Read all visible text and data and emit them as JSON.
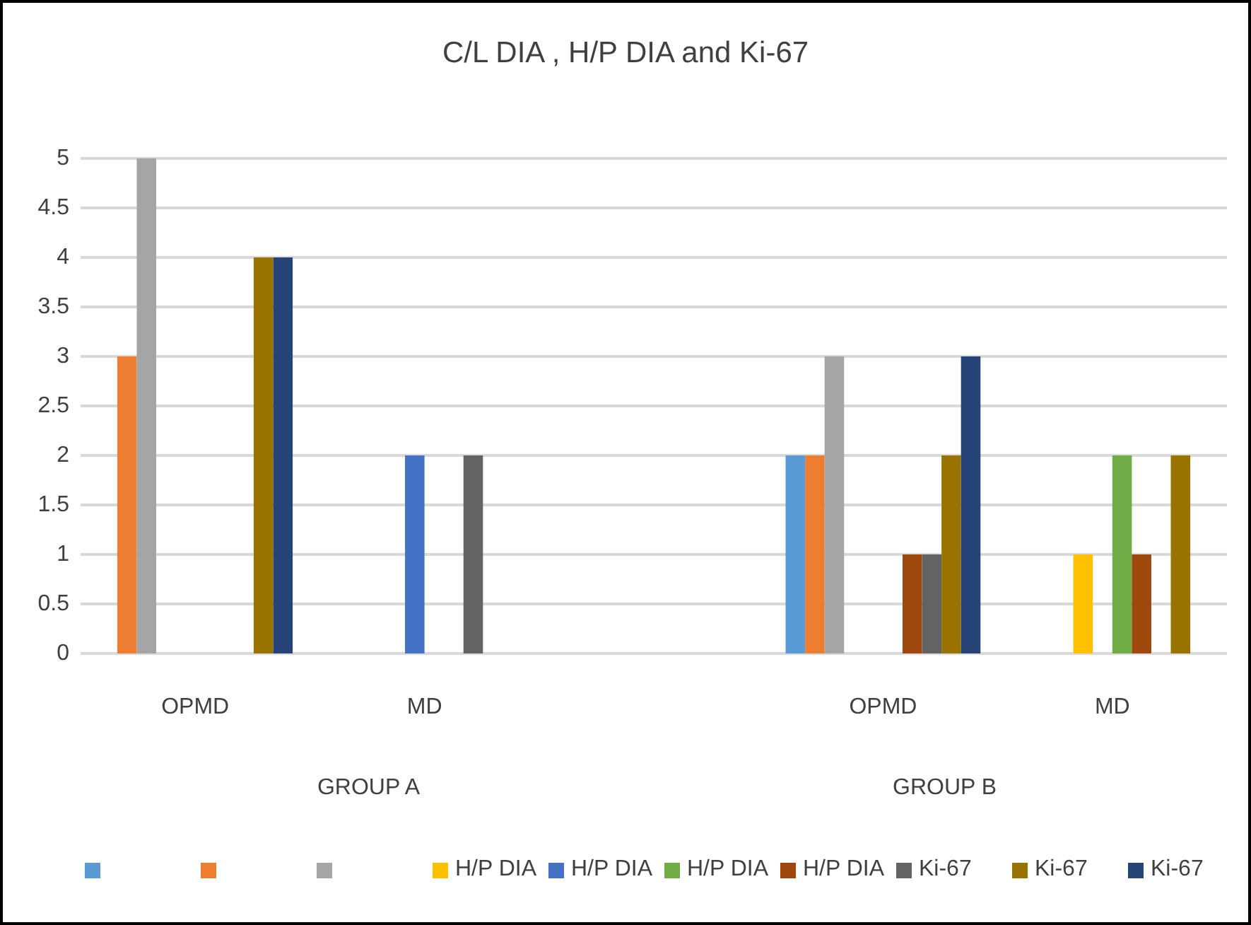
{
  "chart_data": {
    "type": "bar",
    "title": "C/L DIA , H/P DIA and Ki-67",
    "categories": [
      "OPMD",
      "MD",
      null,
      "OPMD",
      "MD"
    ],
    "series": [
      {
        "color": "#5b9bd5",
        "values": [
          null,
          null,
          null,
          2,
          null
        ]
      },
      {
        "color": "#ed7d31",
        "values": [
          3,
          null,
          null,
          2,
          null
        ]
      },
      {
        "color": "#a5a5a5",
        "values": [
          5,
          null,
          null,
          3,
          null
        ]
      },
      {
        "name": "H/P DIA",
        "color": "#ffc000",
        "values": [
          null,
          null,
          null,
          null,
          1
        ]
      },
      {
        "name": "H/P DIA",
        "color": "#4472c4",
        "values": [
          null,
          2,
          null,
          null,
          0
        ]
      },
      {
        "name": "H/P DIA",
        "color": "#70ad47",
        "values": [
          null,
          null,
          null,
          null,
          2
        ]
      },
      {
        "name": "H/P DIA",
        "color": "#9e480e",
        "values": [
          null,
          null,
          null,
          1,
          1
        ]
      },
      {
        "name": "Ki-67",
        "color": "#636363",
        "values": [
          0,
          2,
          null,
          1,
          0
        ]
      },
      {
        "name": "Ki-67",
        "color": "#997300",
        "values": [
          4,
          0,
          null,
          2,
          2
        ]
      },
      {
        "name": "Ki-67",
        "color": "#264478",
        "values": [
          4,
          0,
          null,
          3,
          0
        ]
      }
    ],
    "ylim": [
      0,
      5
    ],
    "yticks": [
      0,
      0.5,
      1,
      1.5,
      2,
      2.5,
      3,
      3.5,
      4,
      4.5,
      5
    ],
    "grid": "y",
    "legend": "bottom",
    "annotations": [
      "GROUP A",
      "GROUP B"
    ]
  }
}
